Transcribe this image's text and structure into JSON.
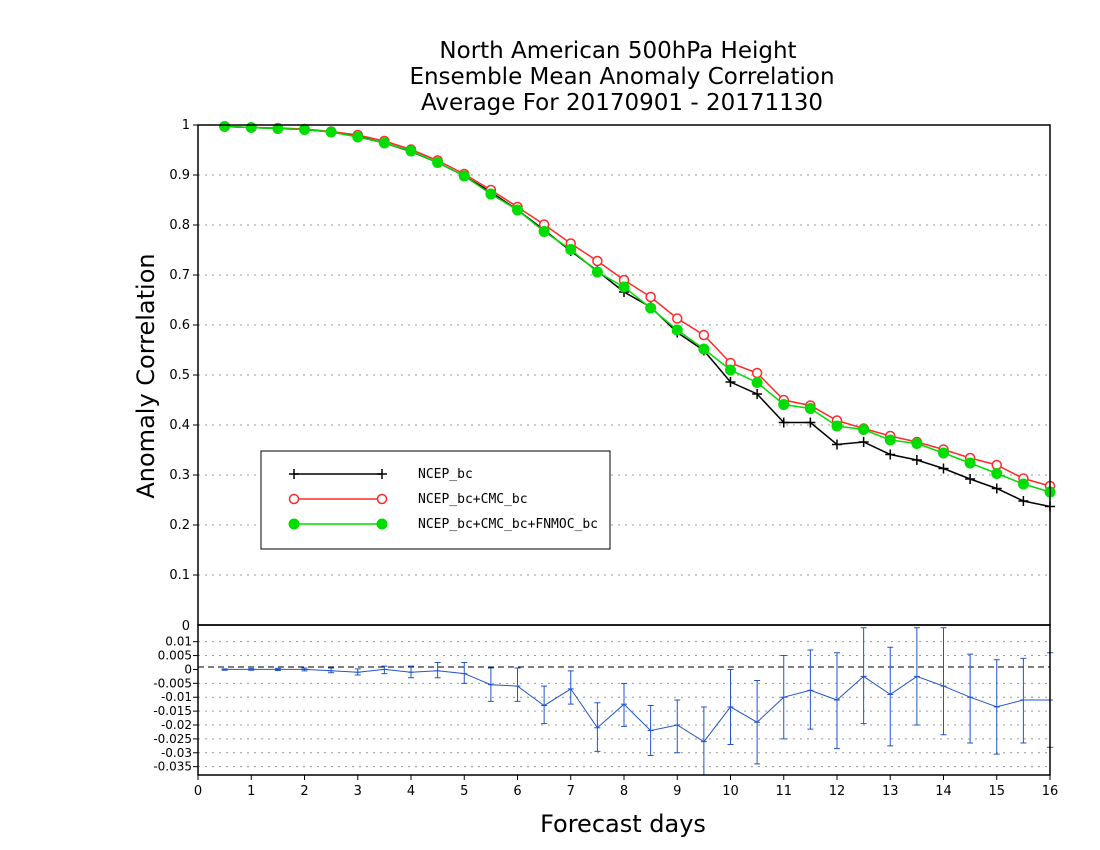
{
  "chart_data": [
    {
      "type": "line",
      "title": [
        "North American 500hPa Height",
        "Ensemble Mean Anomaly Correlation",
        "Average For 20170901 - 20171130"
      ],
      "xlabel": "Forecast days",
      "ylabel": "Anomaly Correlation",
      "xlim": [
        0,
        16
      ],
      "ylim": [
        0,
        1
      ],
      "x_ticks": [
        "0",
        "1",
        "2",
        "3",
        "4",
        "5",
        "6",
        "7",
        "8",
        "9",
        "10",
        "11",
        "12",
        "13",
        "14",
        "15",
        "16"
      ],
      "y_ticks": [
        "0.1",
        "0.2",
        "0.3",
        "0.4",
        "0.5",
        "0.6",
        "0.7",
        "0.8",
        "0.9",
        "1"
      ],
      "grid": true,
      "legend_position": "left-middle",
      "x": [
        0.5,
        1,
        1.5,
        2,
        2.5,
        3,
        3.5,
        4,
        4.5,
        5,
        5.5,
        6,
        6.5,
        7,
        7.5,
        8,
        8.5,
        9,
        9.5,
        10,
        10.5,
        11,
        11.5,
        12,
        12.5,
        13,
        13.5,
        14,
        14.5,
        15,
        15.5,
        16
      ],
      "series": [
        {
          "name": "NCEP_bc",
          "color": "#000000",
          "marker": "plus",
          "values": [
            0.997,
            0.995,
            0.993,
            0.991,
            0.986,
            0.977,
            0.964,
            0.947,
            0.925,
            0.898,
            0.866,
            0.83,
            0.79,
            0.748,
            0.708,
            0.666,
            0.636,
            0.585,
            0.549,
            0.486,
            0.462,
            0.405,
            0.405,
            0.361,
            0.366,
            0.341,
            0.33,
            0.313,
            0.292,
            0.273,
            0.248,
            0.237
          ]
        },
        {
          "name": "NCEP_bc+CMC_bc",
          "color": "#ff2a2a",
          "marker": "open-circle",
          "values": [
            0.997,
            0.995,
            0.994,
            0.992,
            0.987,
            0.98,
            0.968,
            0.951,
            0.929,
            0.902,
            0.87,
            0.836,
            0.801,
            0.763,
            0.728,
            0.69,
            0.656,
            0.613,
            0.58,
            0.524,
            0.504,
            0.45,
            0.439,
            0.409,
            0.393,
            0.378,
            0.366,
            0.351,
            0.334,
            0.32,
            0.293,
            0.278
          ]
        },
        {
          "name": "NCEP_bc+CMC_bc+FNMOC_bc",
          "color": "#00dd00",
          "marker": "filled-circle",
          "values": [
            0.997,
            0.995,
            0.993,
            0.991,
            0.986,
            0.976,
            0.964,
            0.948,
            0.925,
            0.898,
            0.862,
            0.83,
            0.787,
            0.751,
            0.706,
            0.676,
            0.634,
            0.59,
            0.552,
            0.51,
            0.485,
            0.441,
            0.433,
            0.398,
            0.391,
            0.37,
            0.363,
            0.344,
            0.324,
            0.303,
            0.282,
            0.266
          ]
        }
      ]
    },
    {
      "type": "line",
      "xlim": [
        0,
        16
      ],
      "ylim": [
        -0.038,
        0.016
      ],
      "y_ticks": [
        "0.01",
        "0.005",
        "0",
        "-0.005",
        "-0.01",
        "-0.015",
        "-0.02",
        "-0.025",
        "-0.03",
        "-0.035"
      ],
      "top_label": "0",
      "grid": true,
      "x": [
        0.5,
        1,
        1.5,
        2,
        2.5,
        3,
        3.5,
        4,
        4.5,
        5,
        5.5,
        6,
        6.5,
        7,
        7.5,
        8,
        8.5,
        9,
        9.5,
        10,
        10.5,
        11,
        11.5,
        12,
        12.5,
        13,
        13.5,
        14,
        14.5,
        15,
        15.5,
        16
      ],
      "series": [
        {
          "color": "#2255cc",
          "marker": "error-bar",
          "values": [
            0,
            0,
            0,
            0,
            -0.0005,
            -0.001,
            0,
            -0.001,
            -0.0005,
            -0.0015,
            -0.0055,
            -0.006,
            -0.013,
            -0.007,
            -0.021,
            -0.0125,
            -0.022,
            -0.02,
            -0.026,
            -0.0135,
            -0.019,
            -0.01,
            -0.0075,
            -0.011,
            -0.0025,
            -0.009,
            -0.0025,
            -0.006,
            -0.01,
            -0.0135,
            -0.011,
            -0.011
          ],
          "upper": [
            0.0002,
            0.0003,
            0.0004,
            0.0005,
            0.0005,
            0.0002,
            0.0012,
            0.0012,
            0.0025,
            0.0025,
            0.0005,
            0.0005,
            -0.006,
            -0.0005,
            -0.012,
            -0.005,
            -0.013,
            -0.011,
            -0.0135,
            0,
            -0.004,
            0.005,
            0.007,
            0.006,
            0.015,
            0.008,
            0.015,
            0.015,
            0.0055,
            0.0035,
            0.004,
            0.006
          ],
          "lower": [
            -0.0003,
            -0.0003,
            -0.0004,
            -0.0005,
            -0.0012,
            -0.002,
            -0.0015,
            -0.003,
            -0.003,
            -0.005,
            -0.0115,
            -0.0115,
            -0.0195,
            -0.0125,
            -0.0295,
            -0.0205,
            -0.031,
            -0.03,
            -0.038,
            -0.027,
            -0.034,
            -0.025,
            -0.0215,
            -0.0285,
            -0.0195,
            -0.0275,
            -0.02,
            -0.0235,
            -0.0265,
            -0.0305,
            -0.0265,
            -0.028
          ]
        }
      ]
    }
  ]
}
